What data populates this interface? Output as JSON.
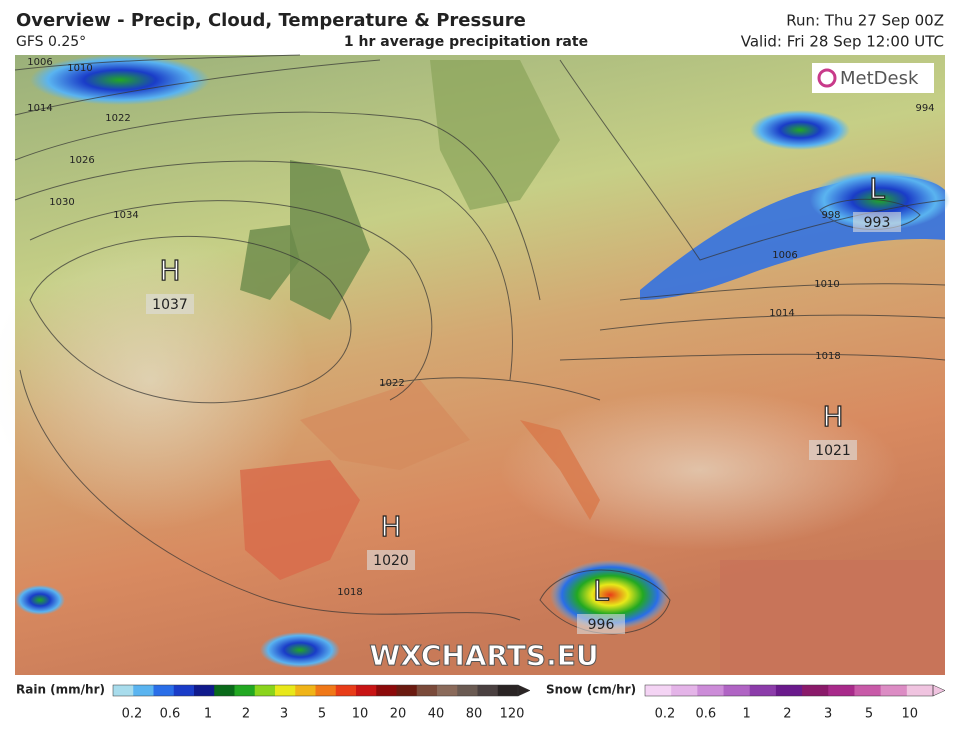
{
  "header": {
    "title": "Overview - Precip, Cloud, Temperature & Pressure",
    "model": "GFS 0.25°",
    "subtitle": "1 hr average precipitation rate",
    "run": "Run: Thu 27 Sep 00Z",
    "valid": "Valid: Fri 28 Sep 12:00 UTC"
  },
  "map": {
    "logo": "MetDesk",
    "watermark": "WXCHARTS.EU",
    "pressure_centers": [
      {
        "type": "H",
        "value": "1037"
      },
      {
        "type": "L",
        "value": "993"
      },
      {
        "type": "H",
        "value": "1021"
      },
      {
        "type": "H",
        "value": "1020"
      },
      {
        "type": "L",
        "value": "996"
      }
    ],
    "isobar_labels": [
      "1006",
      "1010",
      "1014",
      "1022",
      "1026",
      "1030",
      "1034",
      "994",
      "998",
      "1006",
      "1010",
      "1014",
      "1018",
      "1022",
      "1018"
    ]
  },
  "legend": {
    "rain": {
      "label": "Rain (mm/hr)",
      "ticks": [
        "0.2",
        "0.6",
        "1",
        "2",
        "3",
        "5",
        "10",
        "20",
        "40",
        "80",
        "120"
      ],
      "colors": [
        "#a8dcec",
        "#5ab4f0",
        "#2a6ee8",
        "#1a3cc8",
        "#101a8c",
        "#0a6a1a",
        "#22a822",
        "#8ad41c",
        "#e8e81a",
        "#f0b418",
        "#f07818",
        "#e83c18",
        "#c81414",
        "#8c0a0a",
        "#6a1a10",
        "#7a4a3a",
        "#8a6a5a",
        "#6a5a52",
        "#4a4040",
        "#2a2424"
      ]
    },
    "snow": {
      "label": "Snow (cm/hr)",
      "ticks": [
        "0.2",
        "0.6",
        "1",
        "2",
        "3",
        "5",
        "10"
      ],
      "colors": [
        "#f4d4f4",
        "#e4b4e8",
        "#cc8cd8",
        "#b064c4",
        "#8c3caa",
        "#6a1a8c",
        "#8a1a6a",
        "#a82a8a",
        "#c85aa8",
        "#dc8cc4",
        "#f0c4e0"
      ]
    }
  }
}
